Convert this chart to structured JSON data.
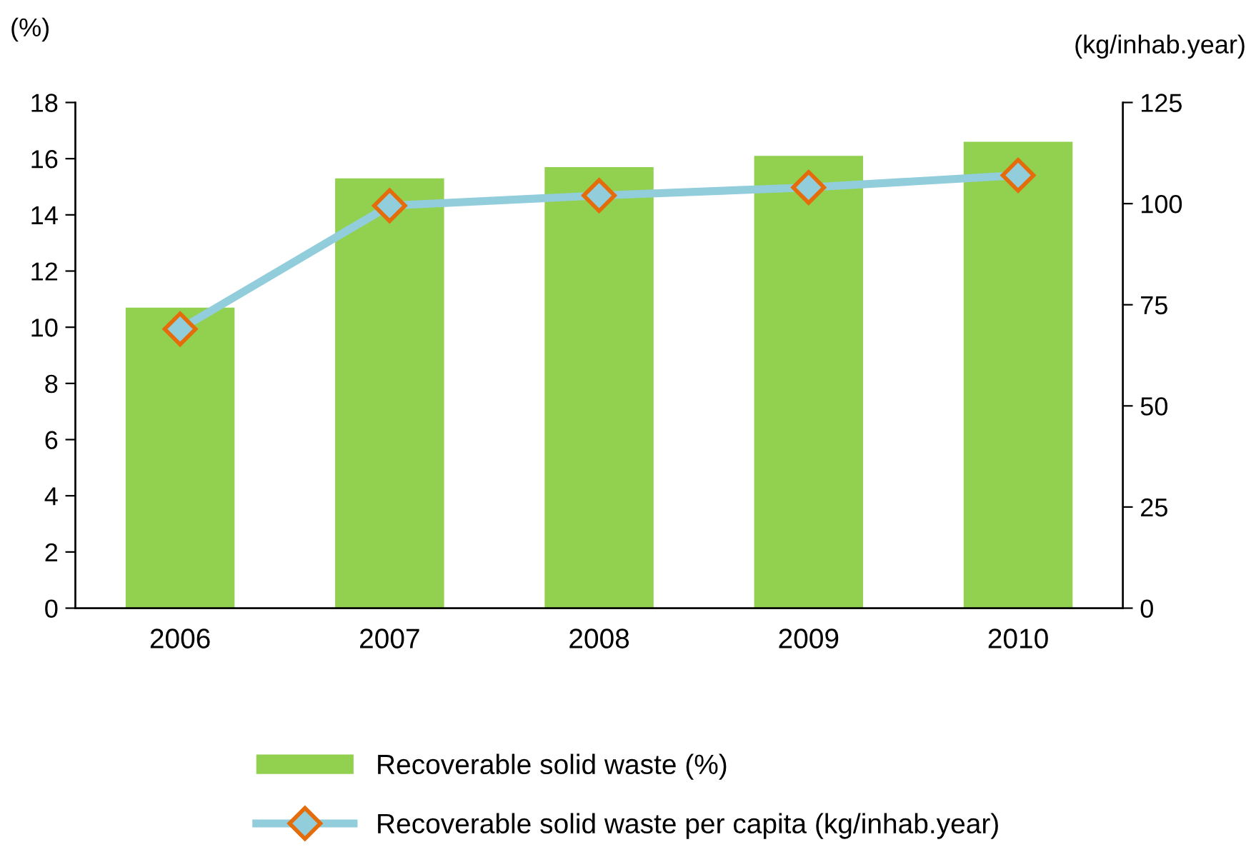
{
  "chart_data": {
    "type": "bar",
    "ylabel": "(%)",
    "y2label": "(kg/inhab.year)",
    "categories": [
      "2006",
      "2007",
      "2008",
      "2009",
      "2010"
    ],
    "series": [
      {
        "name": "Recoverable solid waste (%)",
        "color": "#92d050",
        "values": [
          10.7,
          15.3,
          15.7,
          16.1,
          16.6
        ]
      },
      {
        "name": "Recoverable solid waste per capita (kg/inhab.year)",
        "type": "line",
        "axis": "y2",
        "color": "#92cddc",
        "marker": "diamond",
        "values": [
          69,
          99.5,
          102,
          104,
          107
        ]
      }
    ],
    "ylim": [
      0,
      18
    ],
    "yticks": [
      0,
      2,
      4,
      6,
      8,
      10,
      12,
      14,
      16,
      18
    ],
    "y2lim": [
      0,
      125
    ],
    "y2ticks": [
      0,
      25,
      50,
      75,
      100,
      125
    ],
    "grid": false,
    "legend": "bottom"
  }
}
